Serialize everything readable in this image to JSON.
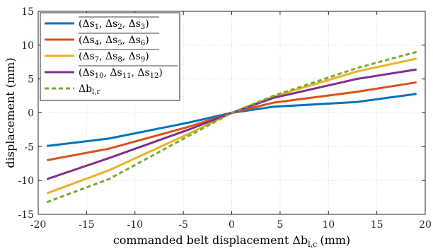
{
  "chart_data": {
    "type": "line",
    "xlabel": "commanded belt displacement Δb",
    "xlabel_sub": "l,c",
    "xlabel_unit": "(mm)",
    "ylabel": "displacement (mm)",
    "xlim": [
      -20,
      20
    ],
    "ylim": [
      -15,
      15
    ],
    "xticks": [
      "-20",
      "-15",
      "-10",
      "-5",
      "0",
      "5",
      "10",
      "15",
      "20"
    ],
    "yticks": [
      "-15",
      "-10",
      "-5",
      "0",
      "5",
      "10",
      "15"
    ],
    "grid": "on",
    "legend_position": "top-left",
    "x": [
      -19.1,
      -12.7,
      -4.3,
      0,
      4.3,
      12.9,
      19.1
    ],
    "series": [
      {
        "name": "(Δs1, Δs2, Δs3)",
        "color": "#0072BD",
        "dash": "solid",
        "values": [
          -4.9,
          -3.8,
          -1.4,
          0,
          0.9,
          1.6,
          2.8
        ]
      },
      {
        "name": "(Δs4, Δs5, Δs6)",
        "color": "#D95319",
        "dash": "solid",
        "values": [
          -7.0,
          -5.3,
          -2.0,
          0,
          1.5,
          3.1,
          4.5
        ]
      },
      {
        "name": "(Δs7, Δs8, Δs9)",
        "color": "#EDB120",
        "dash": "solid",
        "values": [
          -11.9,
          -8.5,
          -3.0,
          0,
          2.4,
          6.1,
          8.0
        ]
      },
      {
        "name": "(Δs10, Δs11, Δs12)",
        "color": "#7E2F8E",
        "dash": "solid",
        "values": [
          -9.8,
          -6.7,
          -2.4,
          0,
          2.2,
          5.0,
          6.4
        ]
      },
      {
        "name": "Δbl,r",
        "color": "#77AC30",
        "dash": "dashed",
        "values": [
          -13.2,
          -9.8,
          -3.3,
          0,
          2.5,
          6.6,
          9.0
        ]
      }
    ]
  }
}
